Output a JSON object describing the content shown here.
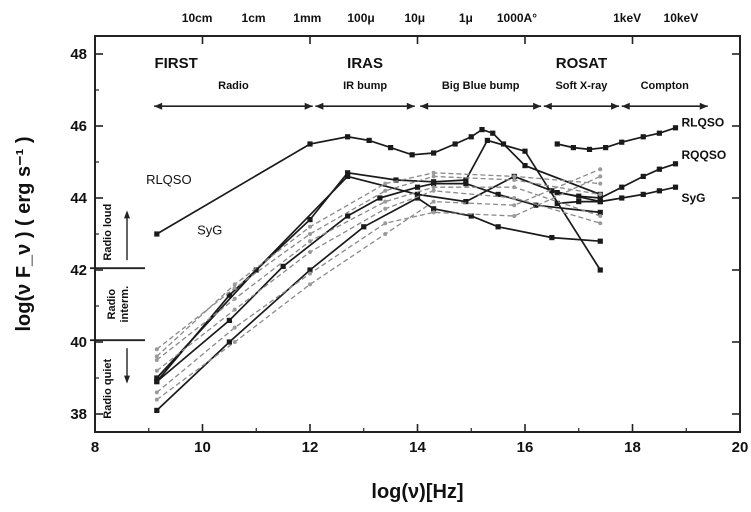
{
  "chart_data": {
    "type": "line",
    "title": "",
    "xlabel": "log(ν)[Hz]",
    "ylabel": "log(ν F_ν ) ( erg s⁻¹ )",
    "xlim": [
      8,
      20
    ],
    "ylim": [
      37.5,
      48.5
    ],
    "x_ticks": [
      8,
      10,
      12,
      14,
      16,
      18,
      20
    ],
    "y_ticks": [
      38,
      40,
      42,
      44,
      46,
      48
    ],
    "grid": false,
    "top_axis_labels": [
      {
        "x": 9.9,
        "label": "10cm"
      },
      {
        "x": 10.95,
        "label": "1cm"
      },
      {
        "x": 11.95,
        "label": "1mm"
      },
      {
        "x": 12.95,
        "label": "100μ"
      },
      {
        "x": 13.95,
        "label": "10μ"
      },
      {
        "x": 14.9,
        "label": "1μ"
      },
      {
        "x": 15.85,
        "label": "1000A°"
      },
      {
        "x": 17.9,
        "label": "1keV"
      },
      {
        "x": 18.9,
        "label": "10keV"
      }
    ],
    "bands": [
      {
        "title": "FIRST",
        "name": "Radio",
        "x_start": 9.1,
        "x_end": 12.05
      },
      {
        "title": "IRAS",
        "name": "IR bump",
        "x_start": 12.1,
        "x_end": 13.95
      },
      {
        "title": "",
        "name": "Big Blue bump",
        "x_start": 14.05,
        "x_end": 16.3
      },
      {
        "title": "ROSAT",
        "name": "Soft X-ray",
        "x_start": 16.35,
        "x_end": 17.75
      },
      {
        "title": "",
        "name": "Compton",
        "x_start": 17.8,
        "x_end": 19.4
      }
    ],
    "radio_classes": [
      "Radio loud",
      "Radio interm.",
      "Radio quiet"
    ],
    "series": [
      {
        "name": "RLQSO",
        "style": "solid",
        "x": [
          9.15,
          12.0,
          12.7,
          13.1,
          13.5,
          13.9,
          14.3,
          14.7,
          15.0,
          15.2,
          15.4,
          15.6,
          16.0,
          17.4
        ],
        "y": [
          43.0,
          45.5,
          45.7,
          45.6,
          45.4,
          45.2,
          45.25,
          45.5,
          45.7,
          45.9,
          45.8,
          45.5,
          44.9,
          44.1
        ]
      },
      {
        "name": "RLQSO",
        "style": "solid",
        "x": [
          16.6,
          16.9,
          17.2,
          17.5,
          17.8,
          18.2,
          18.5,
          18.8
        ],
        "y": [
          45.5,
          45.4,
          45.35,
          45.4,
          45.55,
          45.7,
          45.8,
          45.95
        ]
      },
      {
        "name": "RQQSO",
        "style": "solid",
        "x": [
          16.6,
          17.0,
          17.4,
          17.8,
          18.2,
          18.5,
          18.8
        ],
        "y": [
          44.15,
          44.05,
          44.0,
          44.3,
          44.6,
          44.8,
          44.95
        ]
      },
      {
        "name": "SyG",
        "style": "solid",
        "x": [
          16.6,
          17.0,
          17.4,
          17.8,
          18.2,
          18.5,
          18.8
        ],
        "y": [
          43.85,
          43.9,
          43.9,
          44.0,
          44.1,
          44.2,
          44.3
        ]
      },
      {
        "name": "",
        "style": "solid",
        "x": [
          9.15,
          10.5,
          12.0,
          12.7,
          13.6,
          14.3,
          14.9,
          15.3,
          16.0,
          17.4
        ],
        "y": [
          38.9,
          41.3,
          43.4,
          44.7,
          44.5,
          44.45,
          44.5,
          45.6,
          45.3,
          42.0
        ]
      },
      {
        "name": "",
        "style": "solid",
        "x": [
          9.15,
          10.5,
          11.5,
          12.7,
          13.3,
          14.0,
          14.3,
          14.9,
          15.5,
          16.2,
          17.4
        ],
        "y": [
          38.9,
          40.6,
          42.1,
          43.5,
          44.0,
          44.3,
          44.4,
          44.4,
          44.1,
          43.8,
          43.6
        ]
      },
      {
        "name": "",
        "style": "solid",
        "x": [
          9.15,
          10.5,
          12.0,
          13.0,
          14.0,
          14.3,
          15.0,
          15.5,
          16.5,
          17.4
        ],
        "y": [
          38.1,
          40.0,
          42.0,
          43.2,
          44.0,
          43.7,
          43.5,
          43.2,
          42.9,
          42.8
        ]
      },
      {
        "name": "",
        "style": "solid",
        "x": [
          9.15,
          11.0,
          12.7,
          14.0,
          14.9,
          15.8,
          16.5,
          17.4
        ],
        "y": [
          39.0,
          42.0,
          44.6,
          44.1,
          43.9,
          44.6,
          44.2,
          43.9
        ]
      },
      {
        "name": "",
        "style": "dashed",
        "x": [
          9.15,
          10.6,
          12.0,
          13.4,
          14.3,
          15.8,
          17.4
        ],
        "y": [
          39.5,
          41.2,
          42.8,
          43.9,
          44.3,
          44.3,
          43.5
        ]
      },
      {
        "name": "",
        "style": "dashed",
        "x": [
          9.15,
          10.6,
          12.0,
          13.4,
          14.3,
          15.8,
          17.4
        ],
        "y": [
          39.8,
          41.5,
          43.0,
          44.2,
          44.6,
          44.5,
          44.1
        ]
      },
      {
        "name": "",
        "style": "dashed",
        "x": [
          9.15,
          10.6,
          12.0,
          13.4,
          14.3,
          15.8,
          17.4
        ],
        "y": [
          38.6,
          40.4,
          41.9,
          43.3,
          43.6,
          43.5,
          44.6
        ]
      },
      {
        "name": "",
        "style": "dashed",
        "x": [
          9.15,
          10.6,
          12.0,
          13.4,
          14.3,
          15.8,
          17.4
        ],
        "y": [
          39.2,
          40.9,
          42.5,
          43.7,
          44.2,
          44.0,
          43.3
        ]
      },
      {
        "name": "",
        "style": "dashed",
        "x": [
          9.15,
          10.6,
          12.0,
          13.4,
          14.3,
          15.8,
          17.4
        ],
        "y": [
          38.4,
          40.0,
          41.6,
          43.0,
          43.9,
          43.8,
          44.8
        ]
      },
      {
        "name": "",
        "style": "dashed",
        "x": [
          9.15,
          10.6,
          12.0,
          13.4,
          14.3,
          15.8,
          17.4
        ],
        "y": [
          39.6,
          41.6,
          43.2,
          44.4,
          44.7,
          44.6,
          44.4
        ]
      }
    ],
    "series_labels": [
      {
        "text": "RLQSO",
        "x": 8.95,
        "y": 44.5
      },
      {
        "text": "SyG",
        "x": 9.9,
        "y": 43.1
      },
      {
        "text": "RLQSO",
        "x": 18.8,
        "y": 46.1
      },
      {
        "text": "RQQSO",
        "x": 18.8,
        "y": 45.2
      },
      {
        "text": "SyG",
        "x": 18.8,
        "y": 44.0
      }
    ]
  }
}
